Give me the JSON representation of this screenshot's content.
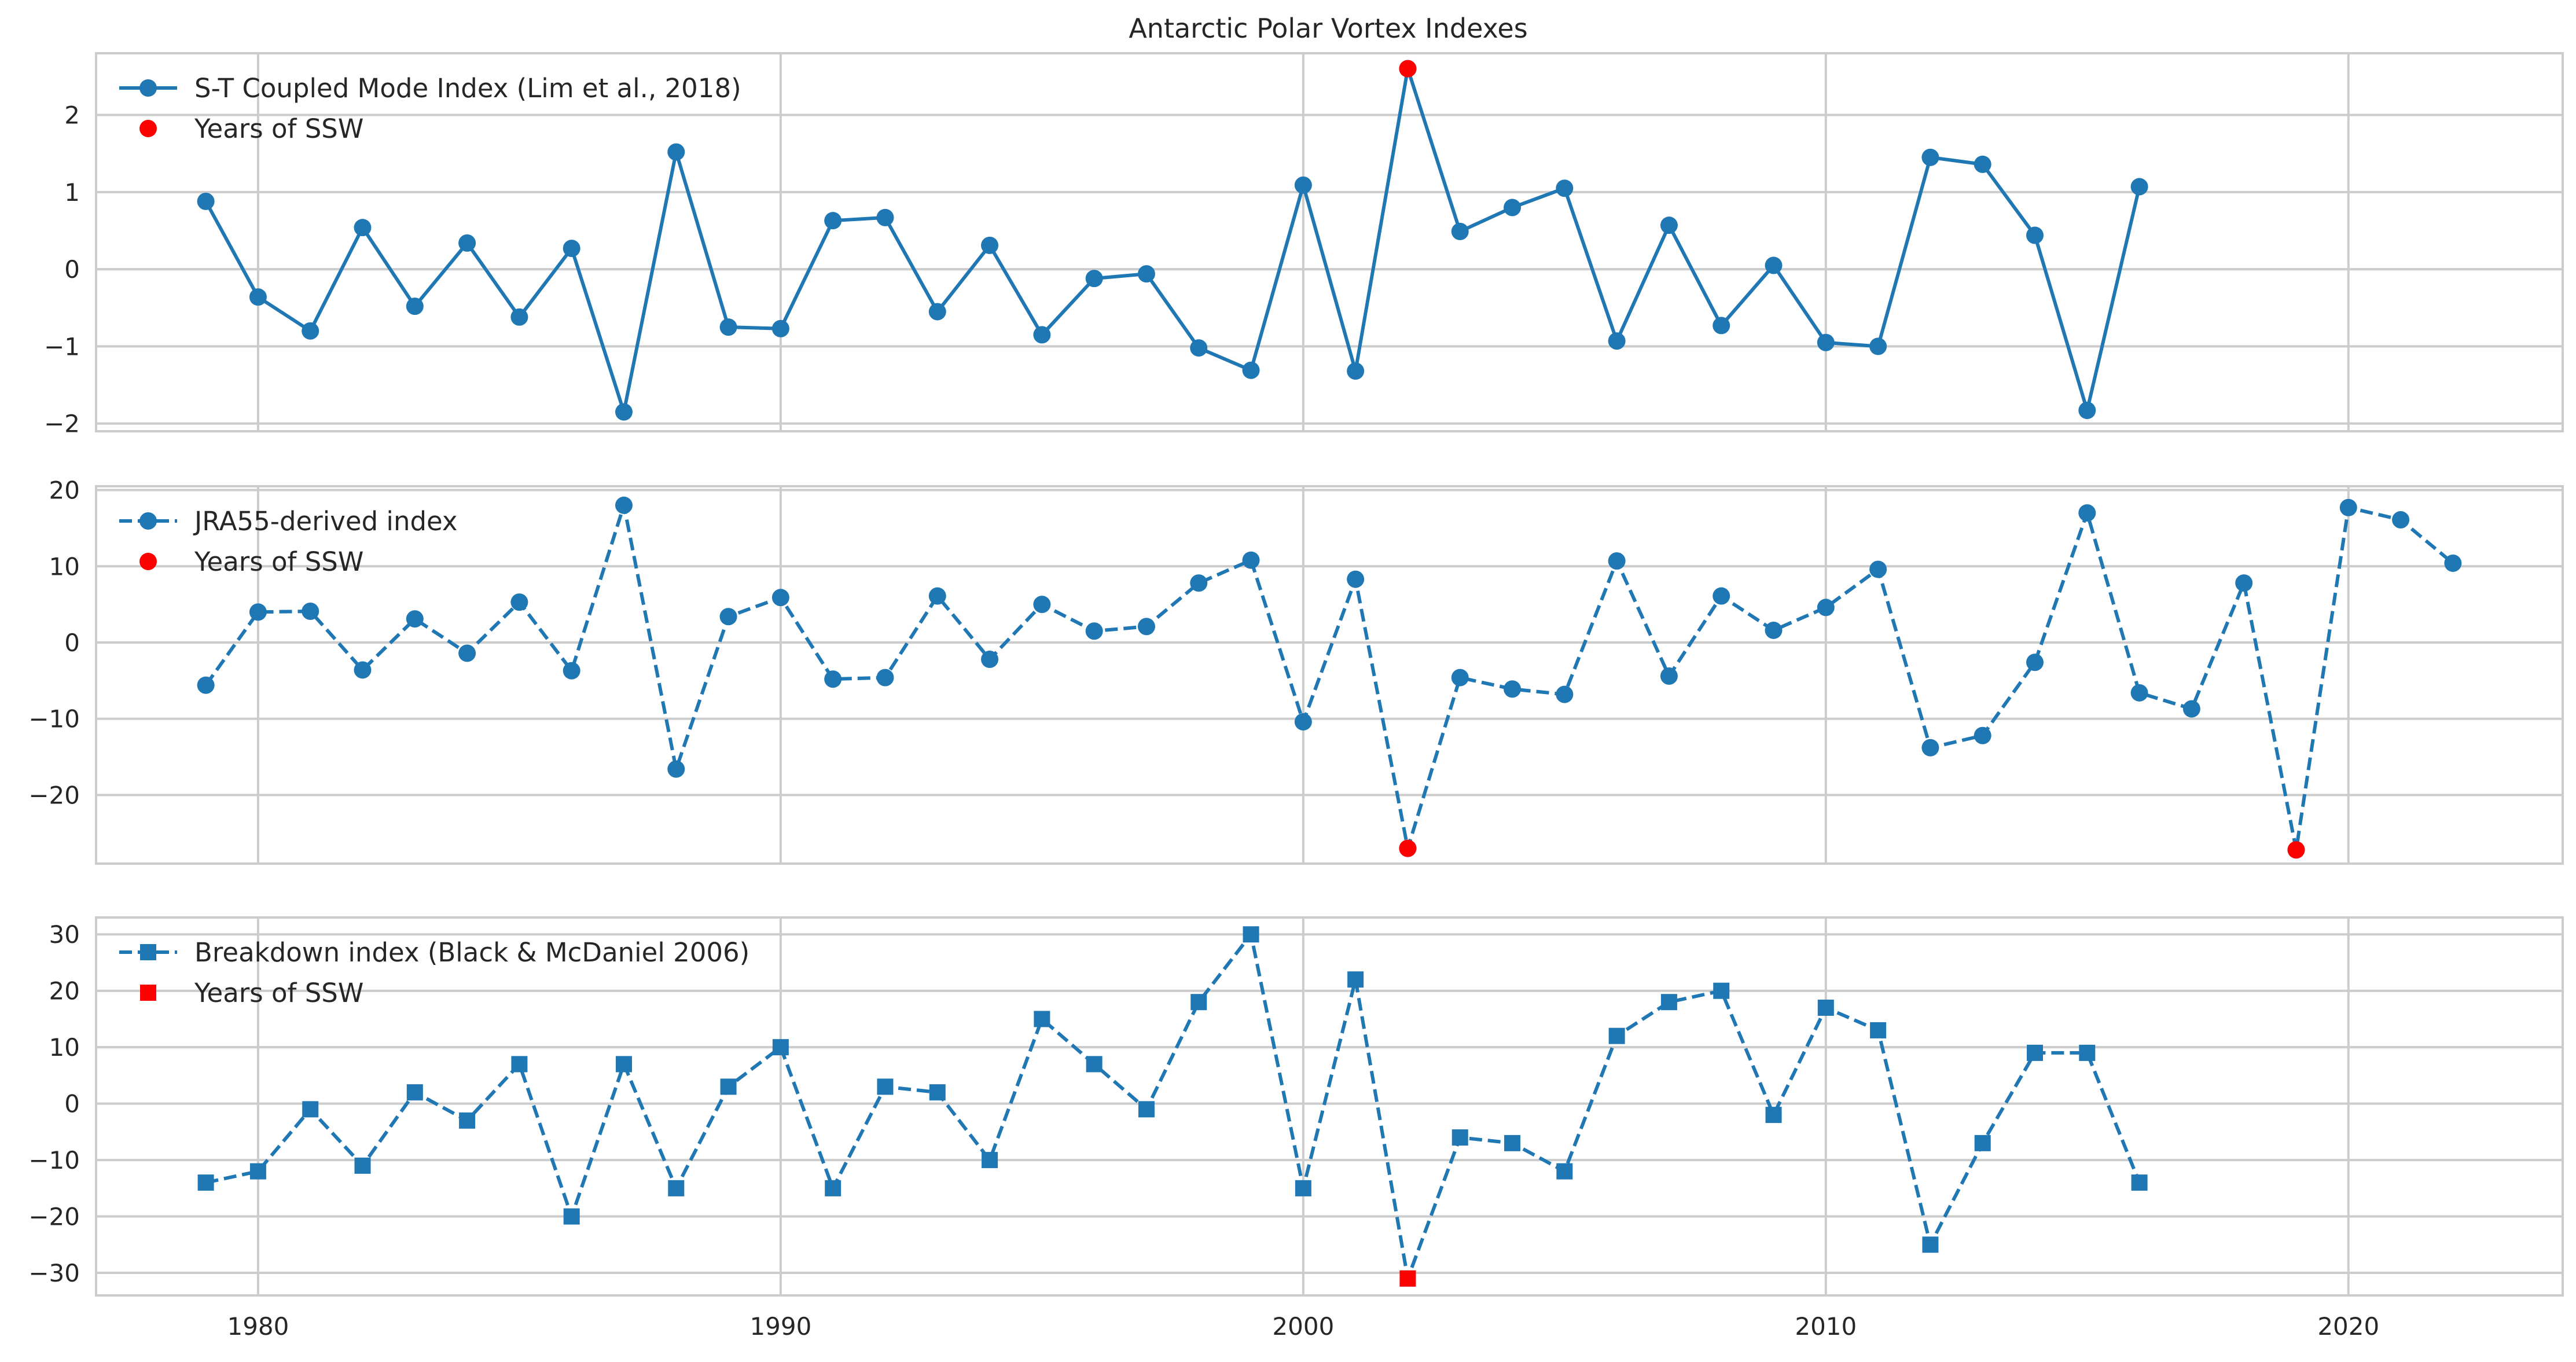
{
  "chart_data": [
    {
      "type": "line",
      "title": "Antarctic Polar Vortex Indexes",
      "xlim": [
        1976.9,
        2024.1
      ],
      "ylim": [
        -2.1,
        2.8
      ],
      "xticks": [
        1980,
        1990,
        2000,
        2010,
        2020
      ],
      "yticks": [
        -2,
        -1,
        0,
        1,
        2
      ],
      "grid": true,
      "legend_position": "top-left",
      "colors": {
        "series": "#1f77b4",
        "ssw": "#ff0000"
      },
      "series": [
        {
          "name": "S-T Coupled Mode Index (Lim et al., 2018)",
          "linestyle": "solid",
          "marker": "circle",
          "x": [
            1979,
            1980,
            1981,
            1982,
            1983,
            1984,
            1985,
            1986,
            1987,
            1988,
            1989,
            1990,
            1991,
            1992,
            1993,
            1994,
            1995,
            1996,
            1997,
            1998,
            1999,
            2000,
            2001,
            2002,
            2003,
            2004,
            2005,
            2006,
            2007,
            2008,
            2009,
            2010,
            2011,
            2012,
            2013,
            2014,
            2015,
            2016
          ],
          "y": [
            0.88,
            -0.36,
            -0.8,
            0.54,
            -0.48,
            0.34,
            -0.62,
            0.27,
            -1.85,
            1.52,
            -0.75,
            -0.77,
            0.63,
            0.67,
            -0.55,
            0.31,
            -0.85,
            -0.12,
            -0.06,
            -1.02,
            -1.31,
            1.09,
            -1.32,
            2.6,
            0.49,
            0.8,
            1.05,
            -0.93,
            0.57,
            -0.73,
            0.05,
            -0.95,
            -1.0,
            1.45,
            1.36,
            0.44,
            -1.83,
            1.07
          ]
        },
        {
          "name": "Years of SSW",
          "linestyle": "none",
          "marker": "circle",
          "x": [
            2002
          ],
          "y": [
            2.6
          ]
        }
      ]
    },
    {
      "type": "line",
      "xlim": [
        1976.9,
        2024.1
      ],
      "ylim": [
        -29,
        20.5
      ],
      "xticks": [
        1980,
        1990,
        2000,
        2010,
        2020
      ],
      "yticks": [
        -20,
        -10,
        0,
        10,
        20
      ],
      "grid": true,
      "legend_position": "top-left",
      "colors": {
        "series": "#1f77b4",
        "ssw": "#ff0000"
      },
      "series": [
        {
          "name": "JRA55-derived index",
          "linestyle": "dashed",
          "marker": "circle",
          "x": [
            1979,
            1980,
            1981,
            1982,
            1983,
            1984,
            1985,
            1986,
            1987,
            1988,
            1989,
            1990,
            1991,
            1992,
            1993,
            1994,
            1995,
            1996,
            1997,
            1998,
            1999,
            2000,
            2001,
            2002,
            2003,
            2004,
            2005,
            2006,
            2007,
            2008,
            2009,
            2010,
            2011,
            2012,
            2013,
            2014,
            2015,
            2016,
            2017,
            2018,
            2019,
            2020,
            2021,
            2022
          ],
          "y": [
            -5.6,
            4.0,
            4.1,
            -3.6,
            3.1,
            -1.4,
            5.3,
            -3.7,
            18.0,
            -16.6,
            3.4,
            5.9,
            -4.8,
            -4.6,
            6.1,
            -2.2,
            5.0,
            1.5,
            2.1,
            7.8,
            10.8,
            -10.4,
            8.3,
            -27.0,
            -4.6,
            -6.1,
            -6.8,
            10.7,
            -4.4,
            6.1,
            1.6,
            4.6,
            9.6,
            -13.8,
            -12.2,
            -2.6,
            17.0,
            -6.6,
            -8.7,
            7.8,
            -27.2,
            17.7,
            16.1,
            10.4
          ]
        },
        {
          "name": "Years of SSW",
          "linestyle": "none",
          "marker": "circle",
          "x": [
            2002,
            2019
          ],
          "y": [
            -27.0,
            -27.2
          ]
        }
      ]
    },
    {
      "type": "line",
      "xlim": [
        1976.9,
        2024.1
      ],
      "ylim": [
        -34,
        33
      ],
      "xticks": [
        1980,
        1990,
        2000,
        2010,
        2020
      ],
      "yticks": [
        -30,
        -20,
        -10,
        0,
        10,
        20,
        30
      ],
      "grid": true,
      "legend_position": "top-left",
      "colors": {
        "series": "#1f77b4",
        "ssw": "#ff0000"
      },
      "series": [
        {
          "name": "Breakdown index (Black & McDaniel 2006)",
          "linestyle": "dashed",
          "marker": "square",
          "x": [
            1979,
            1980,
            1981,
            1982,
            1983,
            1984,
            1985,
            1986,
            1987,
            1988,
            1989,
            1990,
            1991,
            1992,
            1993,
            1994,
            1995,
            1996,
            1997,
            1998,
            1999,
            2000,
            2001,
            2002,
            2003,
            2004,
            2005,
            2006,
            2007,
            2008,
            2009,
            2010,
            2011,
            2012,
            2013,
            2014,
            2015,
            2016
          ],
          "y": [
            -14,
            -12,
            -1,
            -11,
            2,
            -3,
            7,
            -20,
            7,
            -15,
            3,
            10,
            -15,
            3,
            2,
            -10,
            15,
            7,
            -1,
            18,
            30,
            -15,
            22,
            -31,
            -6,
            -7,
            -12,
            12,
            18,
            20,
            -2,
            17,
            13,
            -25,
            -7,
            9,
            9,
            -14
          ]
        },
        {
          "name": "Years of SSW",
          "linestyle": "none",
          "marker": "square",
          "x": [
            2002
          ],
          "y": [
            -31
          ]
        }
      ]
    }
  ]
}
